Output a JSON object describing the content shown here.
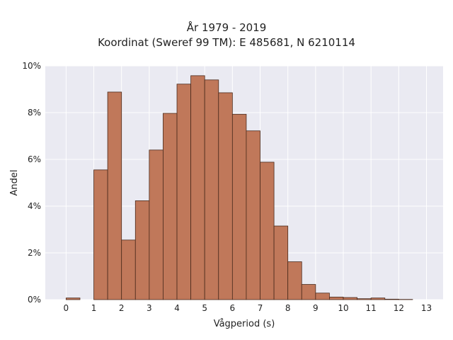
{
  "chart_data": {
    "type": "bar",
    "title": "År 1979 - 2019",
    "subtitle": "Koordinat (Sweref 99 TM): E 485681, N 6210114",
    "xlabel": "Vågperiod (s)",
    "ylabel": "Andel",
    "xlim": [
      -0.75,
      13.6
    ],
    "ylim": [
      0,
      10
    ],
    "x_ticks": [
      0,
      1,
      2,
      3,
      4,
      5,
      6,
      7,
      8,
      9,
      10,
      11,
      12,
      13
    ],
    "y_ticks": [
      0,
      2,
      4,
      6,
      8,
      10
    ],
    "y_tick_labels": [
      "0%",
      "2%",
      "4%",
      "6%",
      "8%",
      "10%"
    ],
    "bin_width": 0.5,
    "bins": [
      {
        "x0": 0.0,
        "value": 0.07
      },
      {
        "x0": 0.5,
        "value": 0.0
      },
      {
        "x0": 1.0,
        "value": 5.55
      },
      {
        "x0": 1.5,
        "value": 8.88
      },
      {
        "x0": 2.0,
        "value": 2.55
      },
      {
        "x0": 2.5,
        "value": 4.23
      },
      {
        "x0": 3.0,
        "value": 6.4
      },
      {
        "x0": 3.5,
        "value": 7.97
      },
      {
        "x0": 4.0,
        "value": 9.22
      },
      {
        "x0": 4.5,
        "value": 9.58
      },
      {
        "x0": 5.0,
        "value": 9.4
      },
      {
        "x0": 5.5,
        "value": 8.85
      },
      {
        "x0": 6.0,
        "value": 7.93
      },
      {
        "x0": 6.5,
        "value": 7.22
      },
      {
        "x0": 7.0,
        "value": 5.88
      },
      {
        "x0": 7.5,
        "value": 3.15
      },
      {
        "x0": 8.0,
        "value": 1.62
      },
      {
        "x0": 8.5,
        "value": 0.65
      },
      {
        "x0": 9.0,
        "value": 0.28
      },
      {
        "x0": 9.5,
        "value": 0.11
      },
      {
        "x0": 10.0,
        "value": 0.09
      },
      {
        "x0": 10.5,
        "value": 0.04
      },
      {
        "x0": 11.0,
        "value": 0.07
      },
      {
        "x0": 11.5,
        "value": 0.02
      },
      {
        "x0": 12.0,
        "value": 0.01
      },
      {
        "x0": 12.5,
        "value": 0.0
      }
    ],
    "grid": true,
    "colors": {
      "bar_fill": "#c0785a",
      "bar_edge": "#4a2a1c",
      "plot_background": "#eaeaf2",
      "grid": "#ffffff"
    }
  }
}
